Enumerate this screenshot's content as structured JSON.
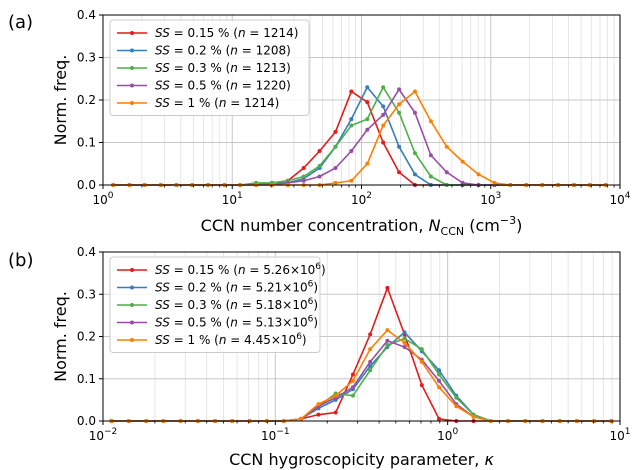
{
  "chart_data": [
    {
      "type": "line",
      "panel_label": "(a)",
      "xlabel_text": "CCN number concentration, ",
      "xlabel_math": "N",
      "xlabel_sub": "CCN",
      "xlabel_unit": " (cm",
      "xlabel_unit_sup": "−3",
      "xlabel_unit_end": ")",
      "ylabel": "Norm. freq.",
      "xscale": "log",
      "xlim": [
        1,
        10000
      ],
      "ylim": [
        0,
        0.4
      ],
      "xticks": [
        1,
        10,
        100,
        1000,
        10000
      ],
      "xtick_labels": [
        [
          "10",
          "0"
        ],
        [
          "10",
          "1"
        ],
        [
          "10",
          "2"
        ],
        [
          "10",
          "3"
        ],
        [
          "10",
          "4"
        ]
      ],
      "yticks": [
        0,
        0.1,
        0.2,
        0.3,
        0.4
      ],
      "ytick_labels": [
        "0.0",
        "0.1",
        "0.2",
        "0.3",
        "0.4"
      ],
      "grid": true,
      "legend_position": "top-left",
      "series": [
        {
          "name_lhs": "SS",
          "name_rhs": " = 0.15 % (",
          "name_n": "n",
          "name_end": " = 1214)",
          "color": "#e41a1c",
          "x": [
            1.2,
            1.6,
            2.1,
            2.8,
            3.7,
            4.9,
            6.5,
            8.7,
            11.5,
            15.3,
            20.3,
            26.9,
            35.7,
            47.4,
            62.9,
            83.5,
            110.8,
            147.1,
            195.3,
            259.2,
            344.1,
            456.8,
            606.4,
            804.9,
            1068.6,
            1418.5,
            1883.1,
            2499.8,
            3318.4,
            4405.1,
            5847.6,
            7762.4
          ],
          "y": [
            0,
            0,
            0,
            0,
            0,
            0,
            0,
            0,
            0,
            0,
            0.005,
            0.01,
            0.04,
            0.08,
            0.125,
            0.22,
            0.195,
            0.1,
            0.03,
            0,
            0,
            0,
            0,
            0,
            0,
            0,
            0,
            0,
            0,
            0,
            0,
            0
          ]
        },
        {
          "name_lhs": "SS",
          "name_rhs": " = 0.2 % (",
          "name_n": "n",
          "name_end": " = 1208)",
          "color": "#377eb8",
          "x": [
            1.2,
            1.6,
            2.1,
            2.8,
            3.7,
            4.9,
            6.5,
            8.7,
            11.5,
            15.3,
            20.3,
            26.9,
            35.7,
            47.4,
            62.9,
            83.5,
            110.8,
            147.1,
            195.3,
            259.2,
            344.1,
            456.8,
            606.4,
            804.9,
            1068.6,
            1418.5,
            1883.1,
            2499.8,
            3318.4,
            4405.1,
            5847.6,
            7762.4
          ],
          "y": [
            0,
            0,
            0,
            0,
            0,
            0,
            0,
            0,
            0,
            0,
            0.005,
            0.005,
            0.015,
            0.04,
            0.09,
            0.155,
            0.23,
            0.185,
            0.09,
            0.025,
            0,
            0,
            0,
            0,
            0,
            0,
            0,
            0,
            0,
            0,
            0,
            0
          ]
        },
        {
          "name_lhs": "SS",
          "name_rhs": " = 0.3 % (",
          "name_n": "n",
          "name_end": " = 1213)",
          "color": "#4daf4a",
          "x": [
            1.2,
            1.6,
            2.1,
            2.8,
            3.7,
            4.9,
            6.5,
            8.7,
            11.5,
            15.3,
            20.3,
            26.9,
            35.7,
            47.4,
            62.9,
            83.5,
            110.8,
            147.1,
            195.3,
            259.2,
            344.1,
            456.8,
            606.4,
            804.9,
            1068.6,
            1418.5,
            1883.1,
            2499.8,
            3318.4,
            4405.1,
            5847.6,
            7762.4
          ],
          "y": [
            0,
            0,
            0,
            0,
            0,
            0,
            0,
            0,
            0,
            0.005,
            0.005,
            0.01,
            0.02,
            0.045,
            0.09,
            0.14,
            0.155,
            0.23,
            0.17,
            0.075,
            0.02,
            0,
            0,
            0,
            0,
            0,
            0,
            0,
            0,
            0,
            0,
            0
          ]
        },
        {
          "name_lhs": "SS",
          "name_rhs": " = 0.5 % (",
          "name_n": "n",
          "name_end": " = 1220)",
          "color": "#984ea3",
          "x": [
            1.2,
            1.6,
            2.1,
            2.8,
            3.7,
            4.9,
            6.5,
            8.7,
            11.5,
            15.3,
            20.3,
            26.9,
            35.7,
            47.4,
            62.9,
            83.5,
            110.8,
            147.1,
            195.3,
            259.2,
            344.1,
            456.8,
            606.4,
            804.9,
            1068.6,
            1418.5,
            1883.1,
            2499.8,
            3318.4,
            4405.1,
            5847.6,
            7762.4
          ],
          "y": [
            0,
            0,
            0,
            0,
            0,
            0,
            0,
            0,
            0,
            0,
            0,
            0.005,
            0.01,
            0.02,
            0.04,
            0.08,
            0.13,
            0.165,
            0.225,
            0.17,
            0.07,
            0.03,
            0.005,
            0,
            0,
            0,
            0,
            0,
            0,
            0,
            0,
            0
          ]
        },
        {
          "name_lhs": "SS",
          "name_rhs": " = 1 % (",
          "name_n": "n",
          "name_end": " = 1214)",
          "color": "#ff7f00",
          "x": [
            1.2,
            1.6,
            2.1,
            2.8,
            3.7,
            4.9,
            6.5,
            8.7,
            11.5,
            15.3,
            20.3,
            26.9,
            35.7,
            47.4,
            62.9,
            83.5,
            110.8,
            147.1,
            195.3,
            259.2,
            344.1,
            456.8,
            606.4,
            804.9,
            1068.6,
            1418.5,
            1883.1,
            2499.8,
            3318.4,
            4405.1,
            5847.6,
            7762.4
          ],
          "y": [
            0,
            0,
            0,
            0,
            0,
            0,
            0,
            0,
            0,
            0,
            0,
            0,
            0,
            0,
            0.005,
            0.01,
            0.05,
            0.14,
            0.19,
            0.22,
            0.15,
            0.09,
            0.055,
            0.025,
            0.005,
            0,
            0,
            0,
            0,
            0,
            0,
            0
          ]
        }
      ]
    },
    {
      "type": "line",
      "panel_label": "(b)",
      "xlabel_text": "CCN hygroscopicity parameter, ",
      "xlabel_math": "κ",
      "ylabel": "Norm. freq.",
      "xscale": "log",
      "xlim": [
        0.01,
        10
      ],
      "ylim": [
        0,
        0.4
      ],
      "xticks": [
        0.01,
        0.1,
        1,
        10
      ],
      "xtick_labels": [
        [
          "10",
          "−2"
        ],
        [
          "10",
          "−1"
        ],
        [
          "10",
          "0"
        ],
        [
          "10",
          "1"
        ]
      ],
      "yticks": [
        0,
        0.1,
        0.2,
        0.3,
        0.4
      ],
      "ytick_labels": [
        "0.0",
        "0.1",
        "0.2",
        "0.3",
        "0.4"
      ],
      "grid": true,
      "legend_position": "top-left",
      "series": [
        {
          "name_lhs": "SS",
          "name_rhs": " = 0.15 % (",
          "name_n": "n",
          "name_mid": " = 5.26×10",
          "name_sup": "6",
          "name_end": ")",
          "color": "#e41a1c",
          "x": [
            0.0112,
            0.0141,
            0.0178,
            0.0224,
            0.0282,
            0.0355,
            0.0447,
            0.0562,
            0.0708,
            0.0891,
            0.112,
            0.141,
            0.178,
            0.224,
            0.282,
            0.355,
            0.447,
            0.562,
            0.708,
            0.891,
            1.122,
            1.413,
            1.778,
            2.239,
            2.818,
            3.548,
            4.467,
            5.623,
            7.079,
            8.913
          ],
          "y": [
            0,
            0,
            0,
            0,
            0,
            0,
            0,
            0,
            0,
            0,
            0,
            0.005,
            0.015,
            0.02,
            0.11,
            0.205,
            0.315,
            0.205,
            0.085,
            0.005,
            0,
            0,
            0,
            0,
            0,
            0,
            0,
            0,
            0,
            0
          ]
        },
        {
          "name_lhs": "SS",
          "name_rhs": " = 0.2 % (",
          "name_n": "n",
          "name_mid": " = 5.21×10",
          "name_sup": "6",
          "name_end": ")",
          "color": "#377eb8",
          "x": [
            0.0112,
            0.0141,
            0.0178,
            0.0224,
            0.0282,
            0.0355,
            0.0447,
            0.0562,
            0.0708,
            0.0891,
            0.112,
            0.141,
            0.178,
            0.224,
            0.282,
            0.355,
            0.447,
            0.562,
            0.708,
            0.891,
            1.122,
            1.413,
            1.778,
            2.239,
            2.818,
            3.548,
            4.467,
            5.623,
            7.079,
            8.913
          ],
          "y": [
            0,
            0,
            0,
            0,
            0,
            0,
            0,
            0,
            0,
            0,
            0,
            0.005,
            0.03,
            0.05,
            0.075,
            0.13,
            0.175,
            0.21,
            0.165,
            0.12,
            0.06,
            0.015,
            0,
            0,
            0,
            0,
            0,
            0,
            0,
            0
          ]
        },
        {
          "name_lhs": "SS",
          "name_rhs": " = 0.3 % (",
          "name_n": "n",
          "name_mid": " = 5.18×10",
          "name_sup": "6",
          "name_end": ")",
          "color": "#4daf4a",
          "x": [
            0.0112,
            0.0141,
            0.0178,
            0.0224,
            0.0282,
            0.0355,
            0.0447,
            0.0562,
            0.0708,
            0.0891,
            0.112,
            0.141,
            0.178,
            0.224,
            0.282,
            0.355,
            0.447,
            0.562,
            0.708,
            0.891,
            1.122,
            1.413,
            1.778,
            2.239,
            2.818,
            3.548,
            4.467,
            5.623,
            7.079,
            8.913
          ],
          "y": [
            0,
            0,
            0,
            0,
            0,
            0,
            0,
            0,
            0,
            0,
            0,
            0.005,
            0.035,
            0.065,
            0.06,
            0.12,
            0.18,
            0.195,
            0.17,
            0.11,
            0.055,
            0.015,
            0,
            0,
            0,
            0,
            0,
            0,
            0,
            0
          ]
        },
        {
          "name_lhs": "SS",
          "name_rhs": " = 0.5 % (",
          "name_n": "n",
          "name_mid": " = 5.13×10",
          "name_sup": "6",
          "name_end": ")",
          "color": "#984ea3",
          "x": [
            0.0112,
            0.0141,
            0.0178,
            0.0224,
            0.0282,
            0.0355,
            0.0447,
            0.0562,
            0.0708,
            0.0891,
            0.112,
            0.141,
            0.178,
            0.224,
            0.282,
            0.355,
            0.447,
            0.562,
            0.708,
            0.891,
            1.122,
            1.413,
            1.778,
            2.239,
            2.818,
            3.548,
            4.467,
            5.623,
            7.079,
            8.913
          ],
          "y": [
            0,
            0,
            0,
            0,
            0,
            0,
            0,
            0,
            0,
            0,
            0,
            0.005,
            0.035,
            0.055,
            0.08,
            0.14,
            0.19,
            0.175,
            0.145,
            0.095,
            0.04,
            0.01,
            0,
            0,
            0,
            0,
            0,
            0,
            0,
            0
          ]
        },
        {
          "name_lhs": "SS",
          "name_rhs": " = 1 % (",
          "name_n": "n",
          "name_mid": " = 4.45×10",
          "name_sup": "6",
          "name_end": ")",
          "color": "#ff7f00",
          "x": [
            0.0112,
            0.0141,
            0.0178,
            0.0224,
            0.0282,
            0.0355,
            0.0447,
            0.0562,
            0.0708,
            0.0891,
            0.112,
            0.141,
            0.178,
            0.224,
            0.282,
            0.355,
            0.447,
            0.562,
            0.708,
            0.891,
            1.122,
            1.413,
            1.778,
            2.239,
            2.818,
            3.548,
            4.467,
            5.623,
            7.079,
            8.913
          ],
          "y": [
            0,
            0,
            0,
            0,
            0,
            0,
            0,
            0,
            0,
            0,
            0,
            0.005,
            0.04,
            0.06,
            0.095,
            0.17,
            0.215,
            0.185,
            0.14,
            0.08,
            0.035,
            0.01,
            0,
            0,
            0,
            0,
            0,
            0,
            0,
            0
          ]
        }
      ]
    }
  ]
}
